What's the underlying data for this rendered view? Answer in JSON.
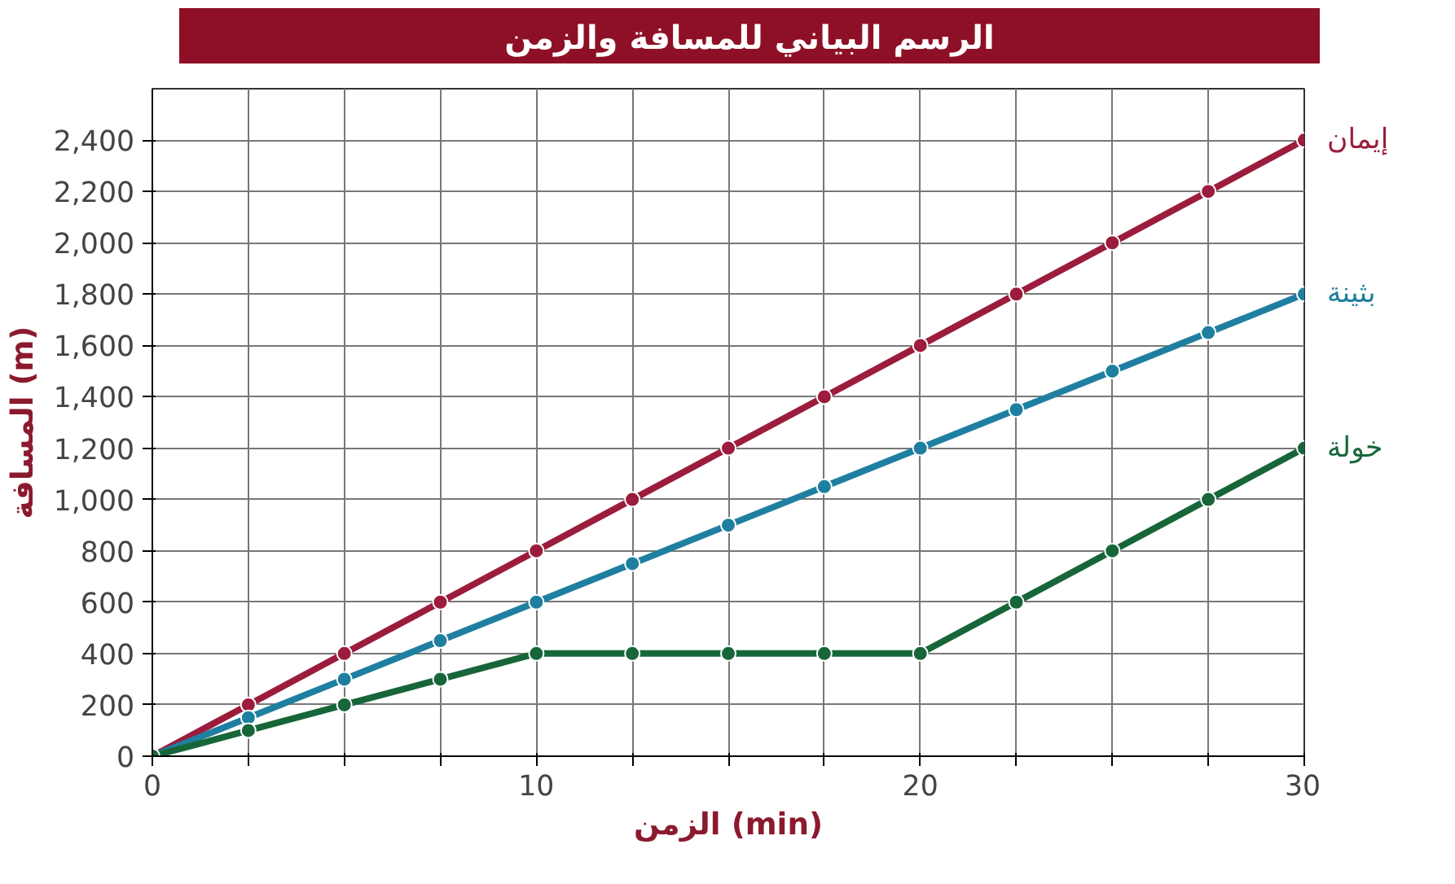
{
  "chart_data": {
    "type": "line",
    "title": "الرسم البياني للمسافة والزمن",
    "xlabel": "الزمن (min)",
    "ylabel": "المسافة (m)",
    "x": [
      0,
      2.5,
      5,
      7.5,
      10,
      12.5,
      15,
      17.5,
      20,
      22.5,
      25,
      27.5,
      30
    ],
    "series": [
      {
        "name": "إيمان",
        "color": "#9b1c3c",
        "values": [
          0,
          200,
          400,
          600,
          800,
          1000,
          1200,
          1400,
          1600,
          1800,
          2000,
          2200,
          2400
        ]
      },
      {
        "name": "بثينة",
        "color": "#1f7fa0",
        "values": [
          0,
          150,
          300,
          450,
          600,
          750,
          900,
          1050,
          1200,
          1350,
          1500,
          1650,
          1800
        ]
      },
      {
        "name": "خولة",
        "color": "#17663a",
        "values": [
          0,
          100,
          200,
          300,
          400,
          400,
          400,
          400,
          400,
          600,
          800,
          1000,
          1200
        ]
      }
    ],
    "xlim": [
      0,
      30
    ],
    "ylim": [
      0,
      2600
    ],
    "xticks": [
      0,
      {
        "value": 2.5,
        "label": null
      },
      {
        "value": 5,
        "label": null
      },
      {
        "value": 7.5,
        "label": null
      },
      10,
      {
        "value": 12.5,
        "label": null
      },
      {
        "value": 15,
        "label": null
      },
      {
        "value": 17.5,
        "label": null
      },
      20,
      {
        "value": 22.5,
        "label": null
      },
      {
        "value": 25,
        "label": null
      },
      {
        "value": 27.5,
        "label": null
      },
      30
    ],
    "yticks": [
      0,
      200,
      400,
      600,
      800,
      {
        "value": 1000,
        "label": "1,000"
      },
      {
        "value": 1200,
        "label": "1,200"
      },
      {
        "value": 1400,
        "label": "1,400"
      },
      {
        "value": 1600,
        "label": "1,600"
      },
      {
        "value": 1800,
        "label": "1,800"
      },
      {
        "value": 2000,
        "label": "2,000"
      },
      {
        "value": 2200,
        "label": "2,200"
      },
      {
        "value": 2400,
        "label": "2,400"
      }
    ],
    "grid": true,
    "marker": "circle",
    "line_style": "solid"
  }
}
